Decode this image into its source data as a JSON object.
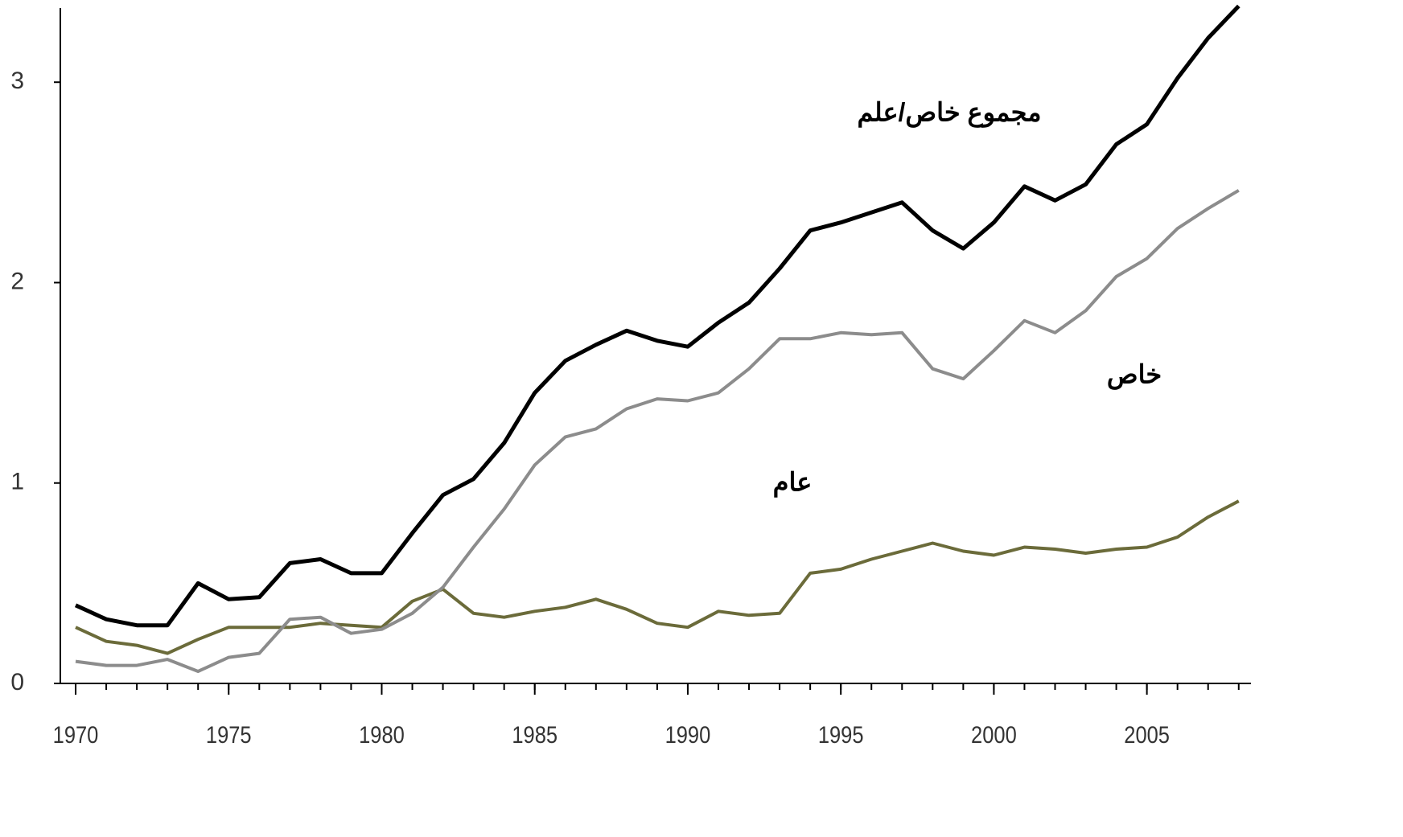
{
  "chart_data": {
    "type": "line",
    "x": [
      1970,
      1971,
      1972,
      1973,
      1974,
      1975,
      1976,
      1977,
      1978,
      1979,
      1980,
      1981,
      1982,
      1983,
      1984,
      1985,
      1986,
      1987,
      1988,
      1989,
      1990,
      1991,
      1992,
      1993,
      1994,
      1995,
      1996,
      1997,
      1998,
      1999,
      2000,
      2001,
      2002,
      2003,
      2004,
      2005,
      2006,
      2007,
      2008
    ],
    "series": [
      {
        "name": "مجموع خاص/علم",
        "color": "#000000",
        "values": [
          0.39,
          0.32,
          0.29,
          0.29,
          0.5,
          0.42,
          0.43,
          0.6,
          0.62,
          0.55,
          0.55,
          0.75,
          0.94,
          1.02,
          1.2,
          1.45,
          1.61,
          1.69,
          1.76,
          1.71,
          1.68,
          1.8,
          1.9,
          2.07,
          2.26,
          2.3,
          2.35,
          2.4,
          2.26,
          2.17,
          2.3,
          2.48,
          2.41,
          2.49,
          2.69,
          2.79,
          3.02,
          3.22,
          3.38
        ]
      },
      {
        "name": "خاص",
        "color": "#8c8c8c",
        "values": [
          0.11,
          0.09,
          0.09,
          0.12,
          0.06,
          0.13,
          0.15,
          0.32,
          0.33,
          0.25,
          0.27,
          0.35,
          0.48,
          0.68,
          0.87,
          1.09,
          1.23,
          1.27,
          1.37,
          1.42,
          1.41,
          1.45,
          1.57,
          1.72,
          1.72,
          1.75,
          1.74,
          1.75,
          1.57,
          1.52,
          1.66,
          1.81,
          1.75,
          1.86,
          2.03,
          2.12,
          2.27,
          2.37,
          2.46
        ]
      },
      {
        "name": "عام",
        "color": "#6b6b3a",
        "values": [
          0.28,
          0.21,
          0.19,
          0.15,
          0.22,
          0.28,
          0.28,
          0.28,
          0.3,
          0.29,
          0.28,
          0.41,
          0.47,
          0.35,
          0.33,
          0.36,
          0.38,
          0.42,
          0.37,
          0.3,
          0.28,
          0.36,
          0.34,
          0.35,
          0.55,
          0.57,
          0.62,
          0.66,
          0.7,
          0.66,
          0.64,
          0.68,
          0.67,
          0.65,
          0.67,
          0.68,
          0.73,
          0.83,
          0.91
        ]
      }
    ],
    "xlim": [
      1969.5,
      2008.4
    ],
    "xticks": [
      1970,
      1975,
      1980,
      1985,
      1990,
      1995,
      2000,
      2005
    ],
    "ylim": [
      0,
      3.37
    ],
    "yticks": [
      0,
      1,
      2,
      3
    ],
    "grid": false
  }
}
